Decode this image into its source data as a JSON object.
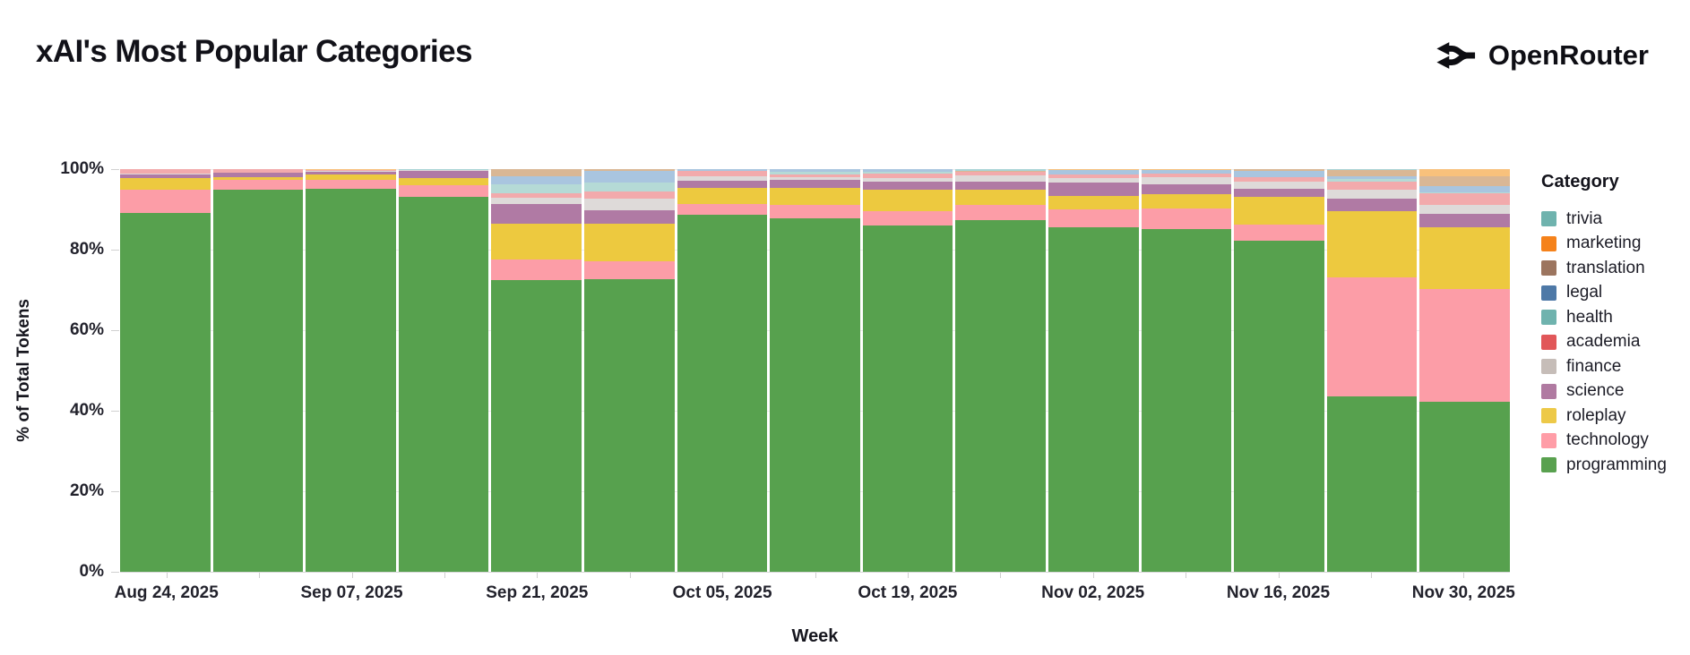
{
  "header": {
    "title": "xAI's Most Popular Categories",
    "brand": "OpenRouter"
  },
  "chart_data": {
    "type": "bar",
    "variant": "stacked-100-percent",
    "title": "xAI's Most Popular Categories",
    "xlabel": "Week",
    "ylabel": "% of Total Tokens",
    "ylim": [
      0,
      100
    ],
    "y_tick_labels": [
      "0%",
      "20%",
      "40%",
      "60%",
      "80%",
      "100%"
    ],
    "grid": "subtle-horizontal",
    "num_bars": 15,
    "x_tick_labels": [
      "Aug 24, 2025",
      "Sep 07, 2025",
      "Sep 21, 2025",
      "Oct 05, 2025",
      "Oct 19, 2025",
      "Nov 02, 2025",
      "Nov 16, 2025",
      "Nov 30, 2025"
    ],
    "x_tick_bar_indices": [
      0,
      2,
      4,
      6,
      8,
      10,
      12,
      14
    ],
    "legend": {
      "title": "Category",
      "position": "right"
    },
    "stacking_note": "series listed legend-top-first; bars stack bottom-up in reverse of this order (programming at bottom)",
    "series": [
      {
        "name": "trivia",
        "color": "#6fb3ae",
        "bar_color": "#a8d4d6",
        "values": [
          0,
          0,
          0,
          0.1,
          0,
          0,
          0,
          0,
          0,
          0.5,
          0,
          0,
          0,
          0.1,
          0
        ]
      },
      {
        "name": "marketing",
        "color": "#f5821b",
        "bar_color": "#f8c17c",
        "values": [
          0,
          0,
          0.1,
          0,
          0,
          0,
          0,
          0,
          0,
          0,
          0.1,
          0.1,
          0,
          0,
          1.8
        ]
      },
      {
        "name": "translation",
        "color": "#9c755f",
        "bar_color": "#d9b795",
        "values": [
          0,
          0,
          0,
          0,
          1.7,
          0.4,
          0,
          0,
          0,
          0.2,
          0.1,
          0.2,
          0.4,
          1.7,
          2.4
        ]
      },
      {
        "name": "legal",
        "color": "#4e79a7",
        "bar_color": "#a9c5df",
        "values": [
          0,
          0,
          0,
          0,
          2.1,
          3.0,
          0.5,
          0.7,
          0.6,
          0,
          1.2,
          0.9,
          1.5,
          0.7,
          1.5
        ]
      },
      {
        "name": "health",
        "color": "#6fb3ae",
        "bar_color": "#b5dad6",
        "values": [
          0,
          0,
          0,
          0,
          2.1,
          2.1,
          0,
          0.6,
          0.4,
          0,
          0,
          0,
          0,
          0.6,
          0.2
        ]
      },
      {
        "name": "academia",
        "color": "#e15759",
        "bar_color": "#f2aaac",
        "values": [
          1.0,
          0.8,
          0.3,
          0.2,
          1.2,
          1.9,
          1.3,
          0.7,
          1.2,
          0.9,
          0.9,
          0.7,
          1.3,
          1.9,
          2.9
        ]
      },
      {
        "name": "finance",
        "color": "#c6bdb8",
        "bar_color": "#dedad9",
        "values": [
          0.4,
          0,
          0.2,
          0.1,
          1.5,
          2.8,
          1.0,
          0.6,
          1.0,
          1.5,
          1.0,
          1.9,
          1.6,
          2.4,
          2.4
        ]
      },
      {
        "name": "science",
        "color": "#b07aa1",
        "bar_color": "#b07aa4",
        "values": [
          0.8,
          1.1,
          0.7,
          1.9,
          5.0,
          3.4,
          1.8,
          2.1,
          1.9,
          2.1,
          3.4,
          2.4,
          2.1,
          3.1,
          3.2
        ]
      },
      {
        "name": "roleplay",
        "color": "#edc948",
        "bar_color": "#edc93f",
        "values": [
          3.0,
          0.8,
          1.3,
          1.8,
          8.9,
          9.2,
          4.0,
          4.2,
          5.3,
          3.6,
          3.2,
          3.6,
          6.8,
          16.3,
          15.3
        ]
      },
      {
        "name": "technology",
        "color": "#ff9da7",
        "bar_color": "#fc9da7",
        "values": [
          5.6,
          2.3,
          2.2,
          2.7,
          5.0,
          4.6,
          2.7,
          3.4,
          3.6,
          3.9,
          4.6,
          5.2,
          4.1,
          29.6,
          28.1
        ]
      },
      {
        "name": "programming",
        "color": "#59a14f",
        "bar_color": "#57a14e",
        "values": [
          89.3,
          95.0,
          95.3,
          93.3,
          72.5,
          72.7,
          88.7,
          87.8,
          86.0,
          87.6,
          85.6,
          85.1,
          82.2,
          43.6,
          42.2
        ]
      }
    ]
  }
}
